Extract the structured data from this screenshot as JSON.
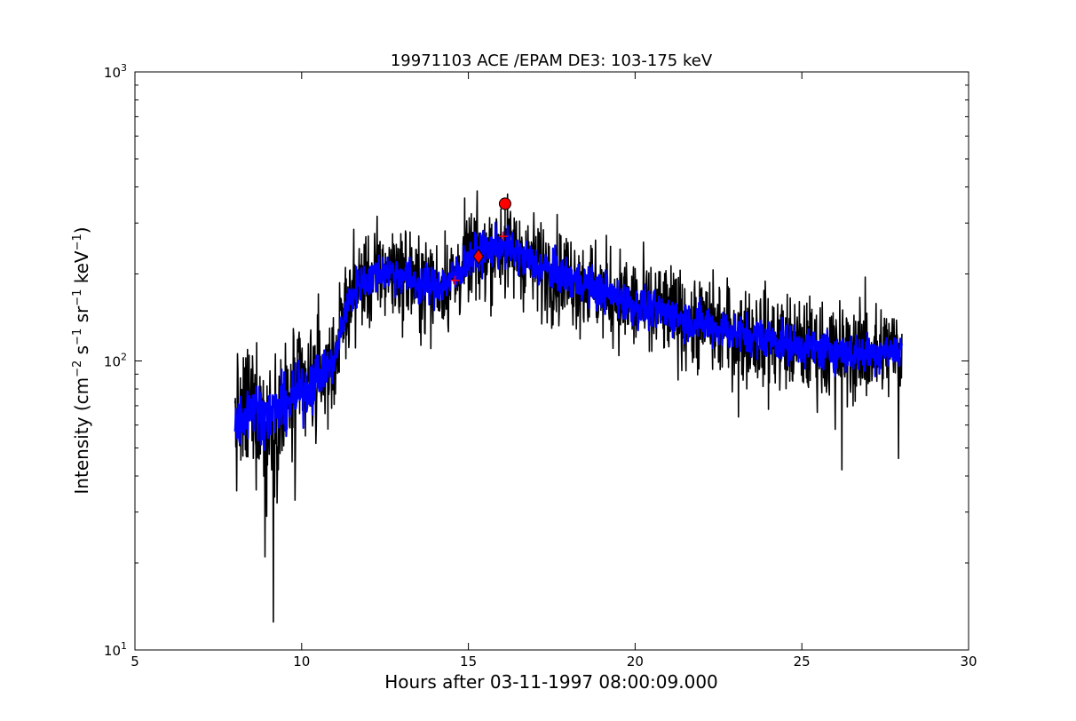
{
  "chart_data": {
    "type": "line",
    "title": "19971103 ACE /EPAM DE3: 103-175 keV",
    "xlabel": "Hours after 03-11-1997 08:00:09.000",
    "ylabel": {
      "base": "Intensity (cm",
      "sup1": "−2",
      "mid1": " s",
      "sup2": "−1",
      "mid2": " sr",
      "sup3": "−1",
      "mid3": " keV",
      "sup4": "−1",
      "end": ")"
    },
    "xlim": [
      5,
      30
    ],
    "ylim": [
      10,
      1000
    ],
    "yscale": "log",
    "x_ticks": [
      5,
      10,
      15,
      20,
      25,
      30
    ],
    "x_tick_labels": [
      "5",
      "10",
      "15",
      "20",
      "25",
      "30"
    ],
    "y_ticks": [
      {
        "value": 10,
        "base": "10",
        "exp": "1"
      },
      {
        "value": 100,
        "base": "10",
        "exp": "2"
      },
      {
        "value": 1000,
        "base": "10",
        "exp": "3"
      }
    ],
    "grid": false,
    "series": [
      {
        "role": "raw",
        "color": "#000000",
        "x_start": 8.0,
        "x_end": 28.0,
        "sample_step_hours": 0.0125,
        "noise_log10": 0.085,
        "envelope": [
          [
            8.0,
            60
          ],
          [
            8.5,
            70
          ],
          [
            9.0,
            65
          ],
          [
            9.5,
            70
          ],
          [
            10.0,
            78
          ],
          [
            10.5,
            88
          ],
          [
            11.0,
            100
          ],
          [
            11.3,
            150
          ],
          [
            11.7,
            185
          ],
          [
            12.5,
            205
          ],
          [
            13.0,
            200
          ],
          [
            13.5,
            185
          ],
          [
            14.0,
            180
          ],
          [
            14.5,
            190
          ],
          [
            15.0,
            225
          ],
          [
            15.5,
            240
          ],
          [
            16.0,
            250
          ],
          [
            16.5,
            235
          ],
          [
            17.0,
            215
          ],
          [
            18.0,
            195
          ],
          [
            19.0,
            175
          ],
          [
            20.0,
            155
          ],
          [
            21.0,
            145
          ],
          [
            22.0,
            135
          ],
          [
            23.0,
            125
          ],
          [
            24.0,
            120
          ],
          [
            25.0,
            112
          ],
          [
            26.0,
            108
          ],
          [
            27.0,
            106
          ],
          [
            28.0,
            110
          ]
        ],
        "spikes": [
          [
            8.9,
            21
          ],
          [
            9.15,
            12.5
          ],
          [
            8.95,
            29
          ],
          [
            9.8,
            33
          ],
          [
            14.6,
            160
          ],
          [
            16.1,
            165
          ],
          [
            26.2,
            42
          ],
          [
            27.9,
            46
          ],
          [
            23.1,
            64
          ],
          [
            24.0,
            68
          ],
          [
            26.0,
            58
          ],
          [
            26.9,
            175
          ],
          [
            26.9,
            195
          ],
          [
            21.7,
            108
          ],
          [
            20.5,
            108
          ]
        ]
      },
      {
        "role": "smoothed",
        "color": "#0000ff",
        "noise_log10": 0.035
      }
    ],
    "markers": [
      {
        "kind": "circle",
        "x": 16.1,
        "y": 350,
        "color": "#ff0000",
        "edge": "#000000"
      },
      {
        "kind": "diamond",
        "x": 15.3,
        "y": 230,
        "color": "#ff0000",
        "edge": "#000000"
      },
      {
        "kind": "plus",
        "x": 14.6,
        "y": 190,
        "color": "#ff0000"
      },
      {
        "kind": "plus",
        "x": 16.05,
        "y": 270,
        "color": "#ff0000"
      }
    ],
    "vlines": [
      {
        "x": 16.1,
        "y_from": 260,
        "y_to": 350,
        "color": "#000000"
      }
    ]
  }
}
